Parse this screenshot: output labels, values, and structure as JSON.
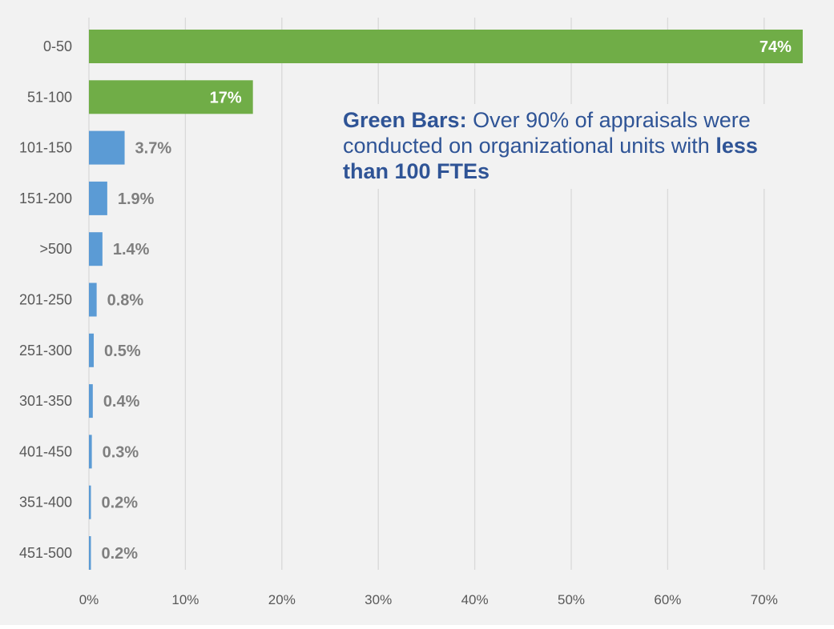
{
  "chart_data": {
    "type": "bar",
    "orientation": "horizontal",
    "categories": [
      "0-50",
      "51-100",
      "101-150",
      "151-200",
      ">500",
      "201-250",
      "251-300",
      "301-350",
      "401-450",
      "351-400",
      "451-500"
    ],
    "values": [
      74,
      17,
      3.7,
      1.9,
      1.4,
      0.8,
      0.5,
      0.4,
      0.3,
      0.2,
      0.2
    ],
    "value_labels": [
      "74%",
      "17%",
      "3.7%",
      "1.9%",
      "1.4%",
      "0.8%",
      "0.5%",
      "0.4%",
      "0.3%",
      "0.2%",
      "0.2%"
    ],
    "bar_colors": [
      "#70ad47",
      "#70ad47",
      "#5b9bd5",
      "#5b9bd5",
      "#5b9bd5",
      "#5b9bd5",
      "#5b9bd5",
      "#5b9bd5",
      "#5b9bd5",
      "#5b9bd5",
      "#5b9bd5"
    ],
    "x_ticks": [
      "0%",
      "10%",
      "20%",
      "30%",
      "40%",
      "50%",
      "60%",
      "70%"
    ],
    "xlim": [
      0,
      70
    ],
    "grid": "vertical",
    "legend": "none"
  },
  "annotation": {
    "bold_lead": "Green Bars:",
    "text": " Over 90% of appraisals were conducted on organizational units with ",
    "bold_tail": "less than 100 FTEs"
  },
  "colors": {
    "background": "#f2f2f2",
    "green": "#70ad47",
    "blue": "#5b9bd5",
    "gridline": "#d9d9d9",
    "axis_text": "#595959",
    "value_text": "#7f7f7f",
    "annotation_text": "#2f5496"
  }
}
